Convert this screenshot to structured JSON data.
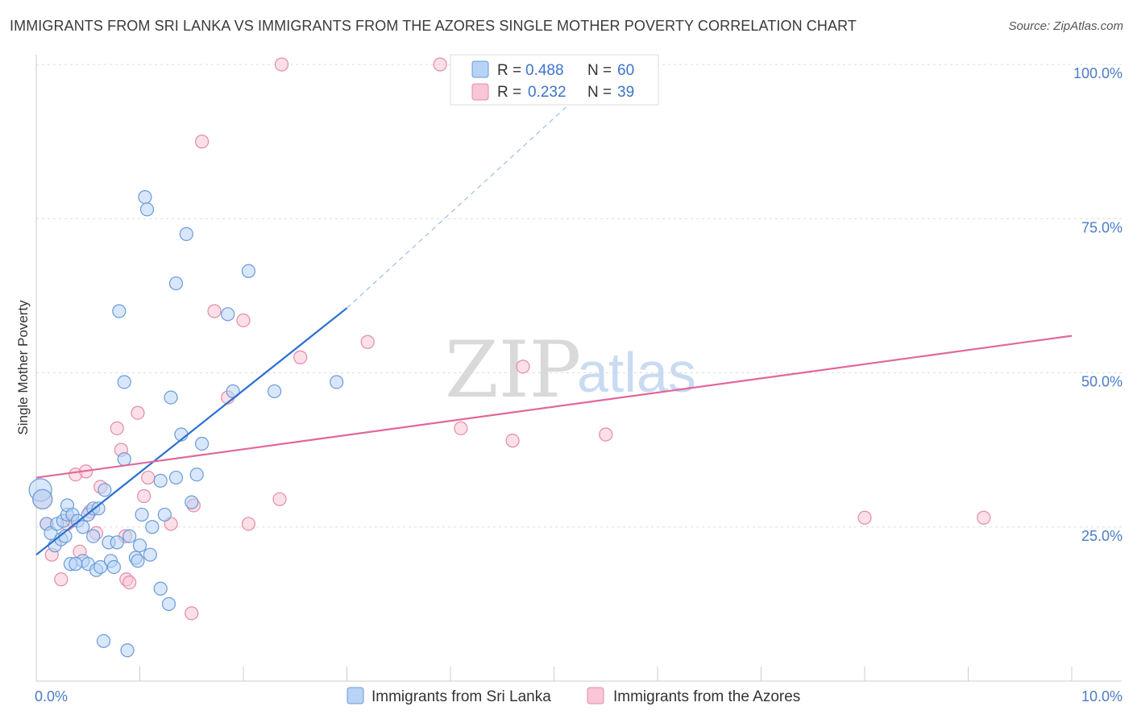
{
  "title": "IMMIGRANTS FROM SRI LANKA VS IMMIGRANTS FROM THE AZORES SINGLE MOTHER POVERTY CORRELATION CHART",
  "source": "Source: ZipAtlas.com",
  "watermark": {
    "zip": "ZIP",
    "atlas": "atlas"
  },
  "chart_data": {
    "type": "scatter",
    "ylabel": "Single Mother Poverty",
    "xlim": [
      0,
      10
    ],
    "ylim": [
      0,
      100
    ],
    "x_tick_labels": [
      {
        "value": 0,
        "label": "0.0%"
      },
      {
        "value": 10,
        "label": "10.0%"
      }
    ],
    "y_tick_labels": [
      {
        "value": 25,
        "label": "25.0%"
      },
      {
        "value": 50,
        "label": "50.0%"
      },
      {
        "value": 75,
        "label": "75.0%"
      },
      {
        "value": 100,
        "label": "100.0%"
      }
    ],
    "legend": {
      "r_label": "R =",
      "n_label": "N =",
      "entries": [
        {
          "series": "Immigrants from Sri Lanka",
          "r": "0.488",
          "n": "60"
        },
        {
          "series": "Immigrants from the Azores",
          "r": "0.232",
          "n": "39"
        }
      ]
    },
    "colors": {
      "sri_lanka_fill": "#b8d3f5",
      "sri_lanka_stroke": "#6a9bd8",
      "sri_lanka_line": "#2a6fd0",
      "azores_fill": "#f8c6d6",
      "azores_stroke": "#e58aa8",
      "azores_line": "#e0689a",
      "tick_label": "#4a7cc7"
    },
    "series": [
      {
        "name": "Immigrants from Sri Lanka",
        "trend": {
          "x0": 0,
          "y0": 20.5,
          "x1": 3.0,
          "y1": 60.5,
          "dash_to_x": 5.5,
          "dash_to_y": 99
        },
        "points": [
          {
            "x": 0.04,
            "y": 31,
            "r": 14
          },
          {
            "x": 0.06,
            "y": 29.5,
            "r": 12
          },
          {
            "x": 0.1,
            "y": 25.5
          },
          {
            "x": 0.14,
            "y": 24
          },
          {
            "x": 0.18,
            "y": 22
          },
          {
            "x": 0.2,
            "y": 25.5
          },
          {
            "x": 0.24,
            "y": 23
          },
          {
            "x": 0.26,
            "y": 26
          },
          {
            "x": 0.3,
            "y": 27
          },
          {
            "x": 0.3,
            "y": 28.5
          },
          {
            "x": 0.28,
            "y": 23.5
          },
          {
            "x": 0.35,
            "y": 27
          },
          {
            "x": 0.4,
            "y": 26
          },
          {
            "x": 0.45,
            "y": 25
          },
          {
            "x": 0.5,
            "y": 27
          },
          {
            "x": 0.55,
            "y": 28
          },
          {
            "x": 0.55,
            "y": 23.5
          },
          {
            "x": 0.6,
            "y": 28
          },
          {
            "x": 0.33,
            "y": 19
          },
          {
            "x": 0.45,
            "y": 19.5
          },
          {
            "x": 0.5,
            "y": 19
          },
          {
            "x": 0.58,
            "y": 18
          },
          {
            "x": 0.62,
            "y": 18.5
          },
          {
            "x": 0.66,
            "y": 31
          },
          {
            "x": 0.7,
            "y": 22.5
          },
          {
            "x": 0.72,
            "y": 19.5
          },
          {
            "x": 0.75,
            "y": 18.5
          },
          {
            "x": 0.78,
            "y": 22.5
          },
          {
            "x": 0.85,
            "y": 36
          },
          {
            "x": 0.9,
            "y": 23.5
          },
          {
            "x": 0.96,
            "y": 20
          },
          {
            "x": 0.98,
            "y": 19.5
          },
          {
            "x": 1.0,
            "y": 22
          },
          {
            "x": 1.02,
            "y": 27
          },
          {
            "x": 1.1,
            "y": 20.5
          },
          {
            "x": 1.12,
            "y": 25
          },
          {
            "x": 1.2,
            "y": 32.5
          },
          {
            "x": 1.2,
            "y": 15
          },
          {
            "x": 1.24,
            "y": 27
          },
          {
            "x": 1.28,
            "y": 12.5
          },
          {
            "x": 1.3,
            "y": 46
          },
          {
            "x": 1.35,
            "y": 33
          },
          {
            "x": 1.4,
            "y": 40
          },
          {
            "x": 1.45,
            "y": 72.5
          },
          {
            "x": 1.5,
            "y": 29
          },
          {
            "x": 1.55,
            "y": 33.5
          },
          {
            "x": 1.6,
            "y": 38.5
          },
          {
            "x": 1.35,
            "y": 64.5
          },
          {
            "x": 1.05,
            "y": 78.5
          },
          {
            "x": 1.07,
            "y": 76.5
          },
          {
            "x": 0.8,
            "y": 60
          },
          {
            "x": 0.85,
            "y": 48.5
          },
          {
            "x": 1.85,
            "y": 59.5
          },
          {
            "x": 1.9,
            "y": 47
          },
          {
            "x": 2.05,
            "y": 66.5
          },
          {
            "x": 2.3,
            "y": 47
          },
          {
            "x": 2.9,
            "y": 48.5
          },
          {
            "x": 0.65,
            "y": 6.5
          },
          {
            "x": 0.88,
            "y": 5
          },
          {
            "x": 0.38,
            "y": 19
          }
        ]
      },
      {
        "name": "Immigrants from the Azores",
        "trend": {
          "x0": 0,
          "y0": 33,
          "x1": 10,
          "y1": 56
        },
        "points": [
          {
            "x": 0.06,
            "y": 29.5,
            "r": 12
          },
          {
            "x": 0.1,
            "y": 25.5
          },
          {
            "x": 0.15,
            "y": 20.5
          },
          {
            "x": 0.24,
            "y": 16.5
          },
          {
            "x": 0.35,
            "y": 26
          },
          {
            "x": 0.38,
            "y": 33.5
          },
          {
            "x": 0.42,
            "y": 21
          },
          {
            "x": 0.48,
            "y": 34
          },
          {
            "x": 0.52,
            "y": 27.5
          },
          {
            "x": 0.58,
            "y": 24
          },
          {
            "x": 0.62,
            "y": 31.5
          },
          {
            "x": 0.78,
            "y": 41
          },
          {
            "x": 0.82,
            "y": 37.5
          },
          {
            "x": 0.86,
            "y": 23.5
          },
          {
            "x": 0.87,
            "y": 16.5
          },
          {
            "x": 0.9,
            "y": 16
          },
          {
            "x": 0.98,
            "y": 43.5
          },
          {
            "x": 1.04,
            "y": 30
          },
          {
            "x": 1.08,
            "y": 33
          },
          {
            "x": 1.3,
            "y": 25.5
          },
          {
            "x": 1.5,
            "y": 11
          },
          {
            "x": 1.52,
            "y": 28.5
          },
          {
            "x": 1.6,
            "y": 87.5
          },
          {
            "x": 1.72,
            "y": 60
          },
          {
            "x": 1.85,
            "y": 46
          },
          {
            "x": 2.0,
            "y": 58.5
          },
          {
            "x": 2.05,
            "y": 25.5
          },
          {
            "x": 2.35,
            "y": 29.5
          },
          {
            "x": 2.55,
            "y": 52.5
          },
          {
            "x": 2.37,
            "y": 100
          },
          {
            "x": 3.9,
            "y": 100
          },
          {
            "x": 3.2,
            "y": 55
          },
          {
            "x": 4.1,
            "y": 41
          },
          {
            "x": 4.6,
            "y": 39
          },
          {
            "x": 4.7,
            "y": 51
          },
          {
            "x": 5.5,
            "y": 40
          },
          {
            "x": 8.0,
            "y": 26.5
          },
          {
            "x": 9.15,
            "y": 26.5
          },
          {
            "x": 0.3,
            "y": 25.5
          }
        ]
      }
    ]
  }
}
